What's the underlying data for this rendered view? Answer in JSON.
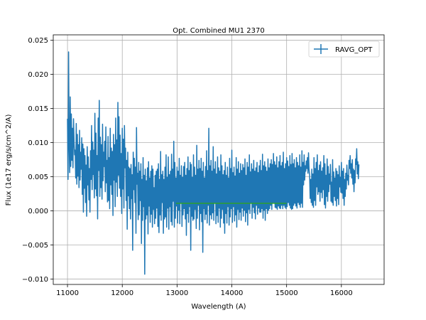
{
  "chart_data": {
    "type": "line",
    "title": "Opt. Combined MU1 2370",
    "xlabel": "Wavelength (A)",
    "ylabel": "Flux (1e17 erg/s/cm^2/A)",
    "xlim": [
      10740,
      16780
    ],
    "ylim": [
      -0.0108,
      0.0258
    ],
    "xticks": [
      11000,
      12000,
      13000,
      14000,
      15000,
      16000
    ],
    "xtick_labels": [
      "11000",
      "12000",
      "13000",
      "14000",
      "15000",
      "16000"
    ],
    "yticks": [
      -0.01,
      -0.005,
      0.0,
      0.005,
      0.01,
      0.015,
      0.02,
      0.025
    ],
    "ytick_labels": [
      "−0.010",
      "−0.005",
      "0.000",
      "0.005",
      "0.010",
      "0.015",
      "0.020",
      "0.025"
    ],
    "grid": true,
    "legend_position": "upper right",
    "series": [
      {
        "name": "RAVG_OPT",
        "color": "#1f77b4",
        "x_start": 11000,
        "x_step": 10,
        "y": [
          0.0135,
          0.0046,
          0.0233,
          0.0098,
          0.0056,
          0.0167,
          0.0065,
          0.0142,
          0.0074,
          0.0121,
          0.0063,
          0.0135,
          0.0101,
          0.0082,
          0.0089,
          0.0048,
          0.0128,
          0.0039,
          0.0112,
          0.0051,
          0.0097,
          0.0034,
          0.0118,
          0.0045,
          0.0086,
          0.0061,
          0.0107,
          0.0024,
          0.0098,
          -0.0002,
          0.0091,
          0.0033,
          0.0081,
          0.0012,
          0.0067,
          -0.0008,
          0.0094,
          0.0038,
          0.0079,
          0.0016,
          0.0062,
          -0.0002,
          0.0088,
          0.0046,
          0.0125,
          0.0031,
          0.0101,
          0.0053,
          0.0089,
          0.0019,
          0.0143,
          0.0032,
          0.0114,
          0.0022,
          0.0081,
          -0.0012,
          0.0136,
          0.0059,
          0.0162,
          0.0021,
          0.0108,
          0.0034,
          0.0097,
          0.0017,
          0.0127,
          0.0044,
          0.0086,
          0.0065,
          0.0102,
          0.0028,
          0.0123,
          0.0041,
          0.0074,
          0.0013,
          0.0109,
          0.0015,
          0.0078,
          0.0003,
          0.0121,
          0.0038,
          0.0092,
          0.0024,
          0.0087,
          -0.0007,
          0.0112,
          0.0045,
          0.0097,
          0.0006,
          0.0136,
          0.0042,
          0.0104,
          0.0021,
          0.0159,
          0.0052,
          0.0138,
          0.0033,
          0.0111,
          0.0021,
          0.0084,
          -0.0004,
          0.0121,
          0.0032,
          0.0105,
          0.0004,
          0.0125,
          0.0063,
          0.0092,
          0.0015,
          0.0074,
          -0.0027,
          0.0086,
          0.0022,
          0.0064,
          0.0003,
          0.0062,
          -0.0012,
          0.0068,
          0.0018,
          0.0053,
          -0.0058,
          0.0086,
          0.0031,
          0.0077,
          0.0012,
          0.0064,
          -0.0033,
          0.0122,
          0.0039,
          0.0055,
          -0.0013,
          0.0071,
          -0.0006,
          0.0058,
          0.0015,
          0.0069,
          -0.0048,
          0.0046,
          -0.0014,
          0.0078,
          0.0006,
          0.0052,
          -0.0093,
          0.0061,
          -0.0012,
          0.0044,
          -0.0006,
          0.0063,
          -0.0034,
          0.0072,
          0.0007,
          0.0048,
          -0.0017,
          0.0058,
          -0.0005,
          0.0066,
          -0.0024,
          0.0061,
          0.0002,
          0.0034,
          -0.0019,
          0.0052,
          -0.0011,
          0.0058,
          0.0004,
          0.0061,
          -0.0023,
          0.0069,
          -0.0032,
          0.0046,
          -0.0006,
          0.0087,
          -0.0014,
          0.0053,
          0.0012,
          0.0058,
          -0.0033,
          0.0046,
          -0.0012,
          0.0064,
          -0.0009,
          0.0082,
          -0.0024,
          0.0049,
          0.0004,
          0.0079,
          -0.0027,
          0.0053,
          0.0006,
          0.0058,
          -0.0016,
          0.0083,
          -0.0021,
          0.0061,
          0.0014,
          0.0102,
          -0.0024,
          0.0071,
          -0.0011,
          0.0048,
          0.0007,
          0.0064,
          -0.0018,
          0.0058,
          0.0001,
          0.0077,
          -0.0019,
          0.0052,
          0.0011,
          0.0066,
          -0.0023,
          0.0049,
          -0.0006,
          0.0065,
          0.0003,
          0.0071,
          -0.0012,
          0.0052,
          -0.0036,
          0.0062,
          -0.0004,
          0.0079,
          -0.0017,
          0.0059,
          0.0006,
          0.0071,
          -0.0058,
          0.0068,
          -0.0008,
          0.0049,
          -0.0014,
          0.0082,
          -0.0012,
          0.0064,
          0.0002,
          0.0052,
          -0.0026,
          0.0096,
          -0.0011,
          0.0061,
          0.0008,
          0.0074,
          -0.0028,
          0.0062,
          -0.0004,
          0.0077,
          -0.0016,
          0.0058,
          -0.0061,
          0.0071,
          0.0003,
          0.0048,
          -0.0013,
          0.0065,
          -0.0005,
          0.0088,
          -0.0018,
          0.0059,
          0.0008,
          0.0121,
          -0.0021,
          0.0066,
          -0.0006,
          0.0074,
          -0.0012,
          0.0058,
          -0.0003,
          0.0094,
          -0.0014,
          0.0061,
          0.0011,
          0.0072,
          -0.0019,
          0.0054,
          -0.0007,
          0.0079,
          -0.0017,
          0.0063,
          0.0004,
          0.0058,
          -0.0024,
          0.0082,
          -0.0011,
          0.0066,
          0.0002,
          0.0053,
          -0.0018,
          0.0059,
          -0.0033,
          0.0071,
          -0.0004,
          0.0052,
          -0.0018,
          0.0064,
          0.0006,
          0.0048,
          -0.0021,
          0.0077,
          -0.0009,
          0.0062,
          0.0003,
          0.0089,
          -0.0017,
          0.0056,
          0.0006,
          0.0064,
          -0.0015,
          0.0051,
          -0.0006,
          0.0078,
          -0.0024,
          0.0061,
          0.0002,
          0.0072,
          -0.0013,
          0.0055,
          -0.0002,
          0.0069,
          -0.0014,
          0.0059,
          0.0004,
          0.0068,
          -0.0008,
          0.0063,
          0.0001,
          0.0076,
          -0.0016,
          0.0052,
          -0.0003,
          0.0071,
          -0.0021,
          0.0064,
          0.0002,
          0.0082,
          -0.0004,
          0.0057,
          0.0012,
          0.0069,
          -0.0011,
          0.0061,
          0.0005,
          0.0074,
          -0.0003,
          0.0058,
          -0.0012,
          0.0063,
          0.0008,
          0.0071,
          -0.0005,
          0.0056,
          0.0004,
          0.0066,
          -0.0002,
          0.0074,
          -0.0002,
          0.0059,
          0.0003,
          0.0083,
          -0.0011,
          0.0066,
          0.0001,
          0.0072,
          -0.0014,
          0.0064,
          0.0003,
          0.0058,
          -0.0004,
          0.0076,
          0.0001,
          0.0063,
          0.0003,
          0.0069,
          0.0008,
          0.0075,
          0.0002,
          0.0068,
          0.0012,
          0.0084,
          0.0012,
          0.0072,
          0.0005,
          0.0067,
          0.0004,
          0.0079,
          0.0002,
          0.0063,
          0.0007,
          0.0072,
          0.0004,
          0.0081,
          0.0003,
          0.0066,
          0.0008,
          0.0071,
          0.0003,
          0.0086,
          0.0008,
          0.0062,
          0.0005,
          0.0069,
          0.0003,
          0.0078,
          0.0006,
          0.0073,
          0.0012,
          0.0065,
          0.0008,
          0.0081,
          0.0004,
          0.0068,
          0.0002,
          0.0084,
          0.0003,
          0.0069,
          0.0008,
          0.0075,
          0.0011,
          0.0063,
          0.0007,
          0.0078,
          0.0004,
          0.0071,
          0.0012,
          0.0066,
          0.0009,
          0.0082,
          0.0005,
          0.0064,
          0.0011,
          0.0088,
          0.0005,
          0.0071,
          0.0038,
          0.0082,
          0.0045,
          0.0066,
          0.0058,
          0.0073,
          0.0062,
          0.0078,
          0.0055,
          0.0085,
          0.0061,
          0.0052,
          0.0018,
          0.0046,
          0.0012,
          0.0061,
          0.0008,
          0.0054,
          0.0005,
          0.0078,
          0.0015,
          0.0062,
          0.0008,
          0.0071,
          0.0035,
          0.0082,
          0.0024,
          0.0059,
          0.0028,
          0.0067,
          0.0014,
          0.0072,
          0.0027,
          0.0058,
          0.0019,
          0.0063,
          0.0031,
          0.0081,
          0.0009,
          0.0069,
          0.0004,
          0.0052,
          0.0021,
          0.0076,
          0.0014,
          0.0065,
          0.0028,
          0.0054,
          0.0039,
          0.0068,
          0.0014,
          0.0042,
          0.0012,
          0.0075,
          0.0008,
          0.0057,
          0.0021,
          0.0048,
          0.0015,
          0.0062,
          0.0007,
          0.0058,
          0.0018,
          0.0053,
          0.0009,
          0.0066,
          0.0035,
          0.0049,
          0.0027,
          0.0071,
          0.0026,
          0.0058,
          0.0018,
          0.0062,
          0.0008,
          0.0046,
          0.0021,
          0.0055,
          0.0032,
          0.0067,
          0.0045,
          0.0052,
          0.0038,
          0.0074,
          0.0062,
          0.0081,
          0.0055,
          0.0069,
          0.0048,
          0.0075,
          0.0039,
          0.0061,
          0.0028,
          0.0059,
          0.0041,
          0.0076,
          0.0068,
          0.0091,
          0.0054,
          0.0072,
          0.0047,
          0.0068
        ]
      },
      {
        "name": "",
        "color": "#2ca02c",
        "x": [
          12980,
          15000
        ],
        "y": [
          0.0011,
          0.0011
        ]
      }
    ]
  }
}
